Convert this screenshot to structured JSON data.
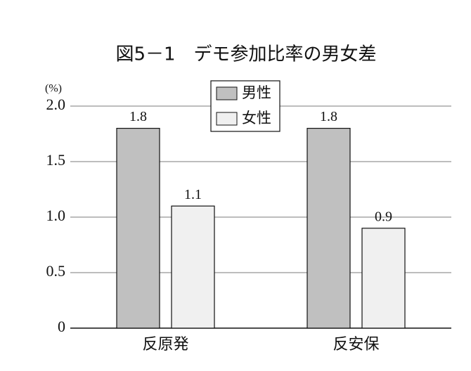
{
  "chart_data": {
    "type": "bar",
    "title": "図5－1　デモ参加比率の男女差",
    "y_unit": "(%)",
    "categories": [
      "反原発",
      "反安保"
    ],
    "series": [
      {
        "name": "男性",
        "color": "#c0c0c0",
        "values": [
          1.8,
          1.8
        ]
      },
      {
        "name": "女性",
        "color": "#f0f0f0",
        "values": [
          1.1,
          0.9
        ]
      }
    ],
    "ylim": [
      0,
      2.0
    ],
    "yticks": [
      0,
      0.5,
      {
        "value": 1,
        "label": "1.0"
      },
      1.5,
      {
        "value": 2,
        "label": "2.0"
      }
    ],
    "grid": true,
    "legend": "top"
  }
}
